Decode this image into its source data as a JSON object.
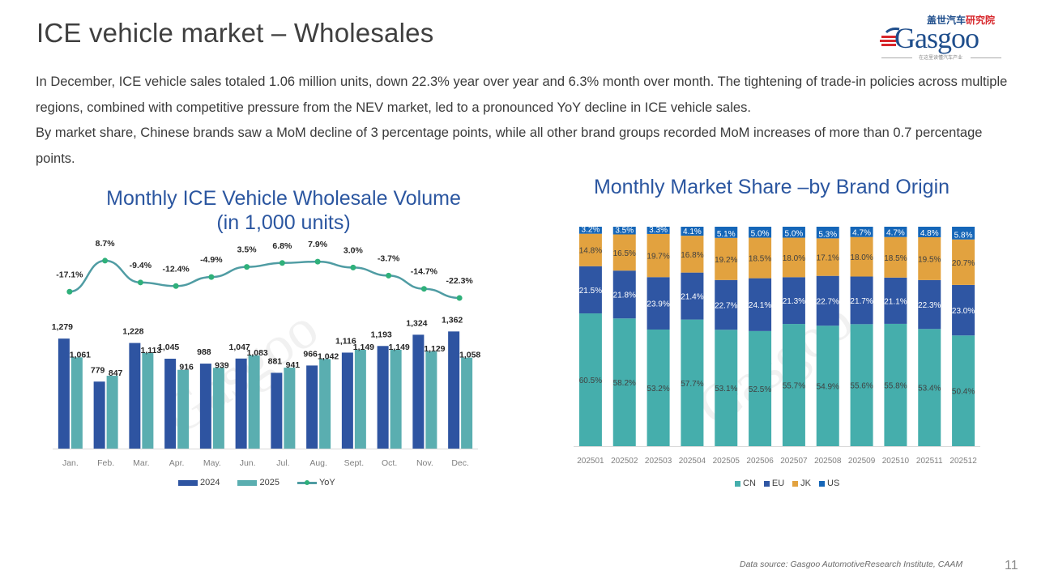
{
  "page": {
    "title": "ICE vehicle market – Wholesales",
    "page_number": "11",
    "source": "Data source: Gasgoo AutomotiveResearch Institute, CAAM"
  },
  "logo": {
    "cn_blue": "盖世汽车",
    "cn_red": "研究院",
    "word": "Gasgoo",
    "tagline": "在这里读懂汽车产业"
  },
  "summary": {
    "paragraph1": "In December, ICE vehicle sales totaled 1.06 million units, down 22.3% year over year and 6.3% month over month. The tightening of trade-in policies across multiple regions, combined with competitive pressure from the NEV market, led to a pronounced YoY decline in ICE vehicle sales.",
    "paragraph2": "By market share, Chinese brands saw a MoM decline of 3 percentage points, while all other brand groups recorded MoM increases of more than 0.7 percentage points."
  },
  "watermark": "Gasgoo",
  "colors": {
    "series_2024": "#2e54a1",
    "series_2025": "#5aaeb0",
    "yoy_line": "#4f9ca3",
    "yoy_marker": "#2fb07a",
    "cn": "#45aeac",
    "eu": "#2f56a3",
    "jk": "#e2a23f",
    "us": "#1566b8",
    "title_blue": "#2b56a0"
  },
  "chart_data": [
    {
      "type": "bar",
      "title": "Monthly ICE Vehicle Wholesale Volume",
      "subtitle": "(in 1,000 units)",
      "xlabel": "",
      "ylabel": "",
      "categories": [
        "Jan.",
        "Feb.",
        "Mar.",
        "Apr.",
        "May.",
        "Jun.",
        "Jul.",
        "Aug.",
        "Sept.",
        "Oct.",
        "Nov.",
        "Dec."
      ],
      "series": [
        {
          "name": "2024",
          "values": [
            1279,
            779,
            1228,
            1045,
            988,
            1047,
            881,
            966,
            1116,
            1193,
            1324,
            1362
          ],
          "labels": [
            "1,279",
            "779",
            "1,228",
            "1,045",
            "988",
            "1,047",
            "881",
            "966",
            "1,116",
            "1,193",
            "1,324",
            "1,362"
          ]
        },
        {
          "name": "2025",
          "values": [
            1061,
            847,
            1113,
            916,
            939,
            1083,
            941,
            1042,
            1149,
            1149,
            1129,
            1058
          ],
          "labels": [
            "1,061",
            "847",
            "1,113",
            "916",
            "939",
            "1,083",
            "941",
            "1,042",
            "1,149",
            "1,149",
            "1,129",
            "1,058"
          ]
        },
        {
          "name": "YoY",
          "type": "line",
          "values": [
            -17.1,
            8.7,
            -9.4,
            -12.4,
            -4.9,
            3.5,
            6.8,
            7.9,
            3.0,
            -3.7,
            -14.7,
            -22.3
          ],
          "labels": [
            "-17.1%",
            "8.7%",
            "-9.4%",
            "-12.4%",
            "-4.9%",
            "3.5%",
            "6.8%",
            "7.9%",
            "3.0%",
            "-3.7%",
            "-14.7%",
            "-22.3%"
          ]
        }
      ],
      "ylim": [
        0,
        1450
      ],
      "yoy_range": [
        -25,
        10
      ],
      "grid": false,
      "legend": {
        "placement": "bottom",
        "entries": [
          "2024",
          "2025",
          "YoY"
        ]
      }
    },
    {
      "type": "bar",
      "stacked": true,
      "title": "Monthly Market Share –by Brand Origin",
      "categories": [
        "202501",
        "202502",
        "202503",
        "202504",
        "202505",
        "202506",
        "202507",
        "202508",
        "202509",
        "202510",
        "202511",
        "202512"
      ],
      "series": [
        {
          "name": "CN",
          "values": [
            60.5,
            58.2,
            53.2,
            57.7,
            53.1,
            52.5,
            55.7,
            54.9,
            55.6,
            55.8,
            53.4,
            50.4
          ]
        },
        {
          "name": "EU",
          "values": [
            21.5,
            21.8,
            23.9,
            21.4,
            22.7,
            24.1,
            21.3,
            22.7,
            21.7,
            21.1,
            22.3,
            23.0
          ]
        },
        {
          "name": "JK",
          "values": [
            14.8,
            16.5,
            19.7,
            16.8,
            19.2,
            18.5,
            18.0,
            17.1,
            18.0,
            18.5,
            19.5,
            20.7
          ]
        },
        {
          "name": "US",
          "values": [
            3.2,
            3.5,
            3.3,
            4.1,
            5.1,
            5.0,
            5.0,
            5.3,
            4.7,
            4.7,
            4.8,
            5.8
          ]
        }
      ],
      "ylim": [
        0,
        100
      ],
      "unit": "%",
      "grid": false,
      "legend": {
        "placement": "bottom",
        "entries": [
          "CN",
          "EU",
          "JK",
          "US"
        ]
      }
    }
  ]
}
